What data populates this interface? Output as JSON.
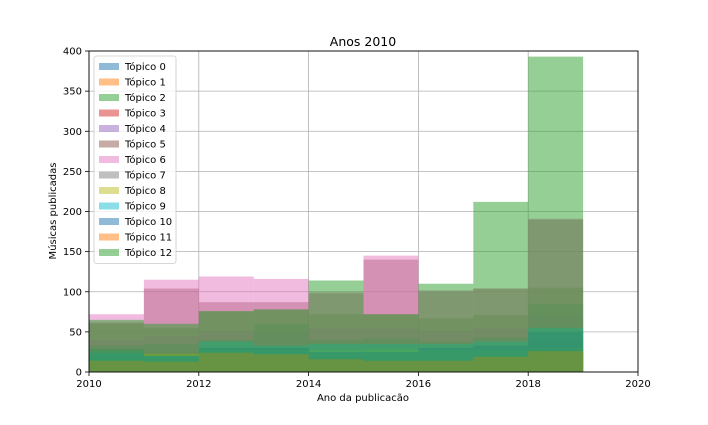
{
  "chart_data": {
    "type": "bar",
    "title": "Anos 2010",
    "xlabel": "Ano da publicacão",
    "ylabel": "Músicas publicadas",
    "xlim": [
      2010,
      2020
    ],
    "ylim": [
      0,
      400
    ],
    "x_ticks": [
      "2010",
      "2012",
      "2014",
      "2016",
      "2018",
      "2020"
    ],
    "y_ticks": [
      "0",
      "50",
      "100",
      "150",
      "200",
      "250",
      "300",
      "350",
      "400"
    ],
    "grid": true,
    "legend_position": "top-left",
    "bins": [
      [
        2010,
        2011
      ],
      [
        2011,
        2012
      ],
      [
        2012,
        2013
      ],
      [
        2013,
        2014
      ],
      [
        2014,
        2015
      ],
      [
        2015,
        2016
      ],
      [
        2016,
        2017
      ],
      [
        2017,
        2018
      ],
      [
        2018,
        2019
      ]
    ],
    "series": [
      {
        "name": "Tópico 0",
        "color": "#1f77b4",
        "values": [
          20,
          17,
          25,
          23,
          18,
          14,
          16,
          20,
          28
        ]
      },
      {
        "name": "Tópico 1",
        "color": "#ff7f0e",
        "values": [
          16,
          15,
          30,
          27,
          18,
          14,
          16,
          20,
          28
        ]
      },
      {
        "name": "Tópico 2",
        "color": "#2ca02c",
        "values": [
          60,
          55,
          75,
          78,
          72,
          72,
          67,
          71,
          105
        ]
      },
      {
        "name": "Tópico 3",
        "color": "#d62728",
        "values": [
          28,
          25,
          30,
          30,
          28,
          28,
          25,
          28,
          40
        ]
      },
      {
        "name": "Tópico 4",
        "color": "#9467bd",
        "values": [
          40,
          45,
          50,
          50,
          55,
          55,
          50,
          55,
          70
        ]
      },
      {
        "name": "Tópico 5",
        "color": "#8c564b",
        "values": [
          62,
          104,
          87,
          87,
          98,
          140,
          100,
          104,
          190
        ]
      },
      {
        "name": "Tópico 6",
        "color": "#e377c2",
        "values": [
          72,
          115,
          119,
          116,
          100,
          145,
          102,
          104,
          191
        ]
      },
      {
        "name": "Tópico 7",
        "color": "#7f7f7f",
        "values": [
          33,
          35,
          40,
          60,
          40,
          42,
          38,
          43,
          85
        ]
      },
      {
        "name": "Tópico 8",
        "color": "#bcbd22",
        "values": [
          27,
          23,
          28,
          28,
          27,
          28,
          27,
          28,
          30
        ]
      },
      {
        "name": "Tópico 9",
        "color": "#17becf",
        "values": [
          24,
          20,
          38,
          33,
          35,
          35,
          35,
          38,
          55
        ]
      },
      {
        "name": "Tópico 10",
        "color": "#1f77b4",
        "values": [
          28,
          20,
          30,
          30,
          25,
          25,
          30,
          33,
          50
        ]
      },
      {
        "name": "Tópico 11",
        "color": "#ff7f0e",
        "values": [
          14,
          13,
          24,
          22,
          16,
          14,
          14,
          19,
          26
        ]
      },
      {
        "name": "Tópico 12",
        "color": "#2ca02c",
        "values": [
          65,
          60,
          76,
          78,
          114,
          72,
          110,
          212,
          393
        ]
      }
    ]
  }
}
